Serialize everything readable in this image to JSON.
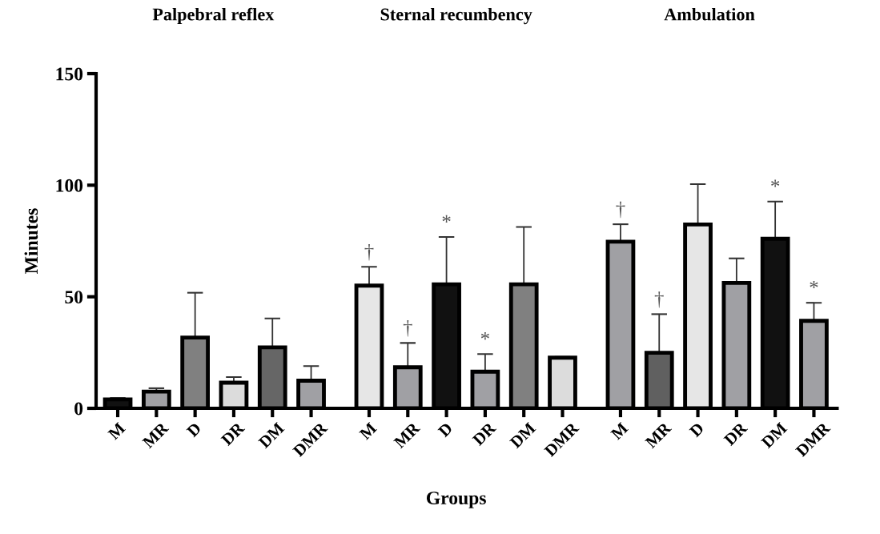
{
  "chart_data": [
    {
      "type": "bar",
      "title": "Palpebral reflex",
      "ylabel": "Minutes",
      "categories": [
        "M",
        "MR",
        "D",
        "DR",
        "DM",
        "DMR"
      ],
      "values": [
        4,
        7.5,
        31.7,
        11.5,
        27.3,
        12.4
      ],
      "errors": [
        0.6,
        1.5,
        20.1,
        2.5,
        13.0,
        6.5
      ],
      "colors": [
        "#111111",
        "#a0a0a4",
        "#808080",
        "#dcdcdc",
        "#666666",
        "#a0a0a4"
      ],
      "ylim": [
        0,
        150
      ],
      "yticks": [
        0,
        50,
        100,
        150
      ],
      "grid": false,
      "legend": false
    },
    {
      "type": "bar",
      "title": "Sternal recumbency",
      "xlabel": "Groups",
      "categories": [
        "M",
        "MR",
        "D",
        "DR",
        "DM",
        "DMR"
      ],
      "values": [
        55,
        18.4,
        55.6,
        16.4,
        55.6,
        22.7
      ],
      "errors": [
        8.4,
        10.9,
        21.2,
        7.9,
        25.7,
        0.3
      ],
      "colors": [
        "#e6e6e6",
        "#a0a0a4",
        "#111111",
        "#a0a0a4",
        "#808080",
        "#dcdcdc"
      ],
      "ylim": [
        0,
        150
      ],
      "yticks": [
        0,
        50,
        100,
        150
      ],
      "tick_labels": "x",
      "grid": false,
      "legend": false,
      "annotations": [
        {
          "text": "†",
          "x": "M",
          "y": 63.4
        },
        {
          "text": "†",
          "x": "MR",
          "y": 29.3
        },
        {
          "text": "*",
          "x": "D",
          "y": 76.8
        },
        {
          "text": "*",
          "x": "DR",
          "y": 24.3
        }
      ]
    },
    {
      "type": "bar",
      "title": "Ambulation",
      "categories": [
        "M",
        "MR",
        "D",
        "DR",
        "DM",
        "DMR"
      ],
      "values": [
        74.7,
        24.9,
        82.4,
        56.2,
        76,
        39.2
      ],
      "errors": [
        7.8,
        17.3,
        18.1,
        11.0,
        16.7,
        8.1
      ],
      "colors": [
        "#a0a0a4",
        "#606060",
        "#e6e6e6",
        "#a0a0a4",
        "#111111",
        "#a0a0a4"
      ],
      "ylim": [
        0,
        150
      ],
      "yticks": [
        0,
        50,
        100,
        150
      ],
      "tick_labels": "x",
      "grid": false,
      "legend": false,
      "annotations": [
        {
          "text": "†",
          "x": "M",
          "y": 82.5
        },
        {
          "text": "†",
          "x": "MR",
          "y": 42.2
        },
        {
          "text": "*",
          "x": "DM",
          "y": 92.7
        },
        {
          "text": "*",
          "x": "DMR",
          "y": 47.3
        }
      ]
    }
  ]
}
